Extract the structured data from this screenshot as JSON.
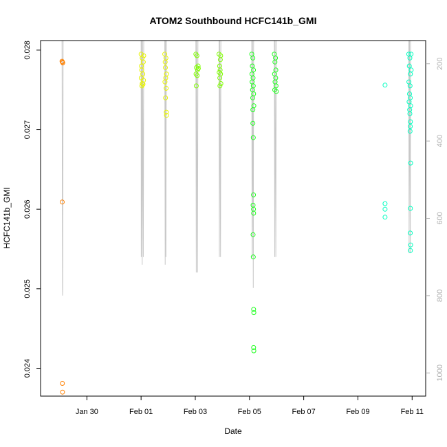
{
  "chart_data": {
    "type": "scatter",
    "title": "ATOM2 Southbound HCFC141b_GMI",
    "xlabel": "Date",
    "ylabel": "HCFC141b_GMI",
    "x_unit": "date",
    "xlim": [
      "2017-01-28T07:00",
      "2017-02-11T12:00"
    ],
    "ylim": [
      0.02365,
      0.02812
    ],
    "y2lim": [
      1060,
      140
    ],
    "x_ticks": [
      {
        "date": "2017-01-30",
        "label": "Jan 30"
      },
      {
        "date": "2017-02-01",
        "label": "Feb 01"
      },
      {
        "date": "2017-02-03",
        "label": "Feb 03"
      },
      {
        "date": "2017-02-05",
        "label": "Feb 05"
      },
      {
        "date": "2017-02-07",
        "label": "Feb 07"
      },
      {
        "date": "2017-02-09",
        "label": "Feb 09"
      },
      {
        "date": "2017-02-11",
        "label": "Feb 11"
      }
    ],
    "y_ticks": [
      {
        "value": 0.024,
        "label": "0.024"
      },
      {
        "value": 0.025,
        "label": "0.025"
      },
      {
        "value": 0.026,
        "label": "0.026"
      },
      {
        "value": 0.027,
        "label": "0.027"
      },
      {
        "value": 0.028,
        "label": "0.028"
      }
    ],
    "y2_ticks": [
      {
        "value": 200,
        "label": "200"
      },
      {
        "value": 400,
        "label": "400"
      },
      {
        "value": 600,
        "label": "600"
      },
      {
        "value": 800,
        "label": "800"
      },
      {
        "value": 1000,
        "label": "1000"
      }
    ],
    "grid": false,
    "point_color_scale": [
      "#ff8000",
      "#ffff00",
      "#00ff00",
      "#00ffcc"
    ],
    "pressure_line_color": "#c8c8c8",
    "series": [
      {
        "color": "#ff8000",
        "points": [
          [
            "2017-01-29T02:00",
            0.02786
          ],
          [
            "2017-01-29T02:20",
            0.02785
          ],
          [
            "2017-01-29T02:40",
            0.02784
          ],
          [
            "2017-01-29T02:10",
            0.02609
          ],
          [
            "2017-01-29T02:20",
            0.02381
          ],
          [
            "2017-01-29T02:25",
            0.0237
          ]
        ]
      },
      {
        "color": "#e8f400",
        "points": [
          [
            "2017-02-01T00:00",
            0.02795
          ],
          [
            "2017-02-01T01:00",
            0.0279
          ],
          [
            "2017-02-01T02:00",
            0.02785
          ],
          [
            "2017-02-01T00:30",
            0.02775
          ],
          [
            "2017-02-01T01:30",
            0.0277
          ],
          [
            "2017-02-01T00:10",
            0.02765
          ],
          [
            "2017-02-01T02:10",
            0.02762
          ],
          [
            "2017-02-01T01:00",
            0.02758
          ],
          [
            "2017-02-01T00:40",
            0.02755
          ],
          [
            "2017-02-01T01:40",
            0.02757
          ],
          [
            "2017-02-01T02:20",
            0.02793
          ],
          [
            "2017-02-01T00:20",
            0.0278
          ],
          [
            "2017-02-01T21:00",
            0.02795
          ],
          [
            "2017-02-01T22:00",
            0.0279
          ],
          [
            "2017-02-01T21:30",
            0.02778
          ],
          [
            "2017-02-01T22:30",
            0.0277
          ],
          [
            "2017-02-01T21:10",
            0.0276
          ],
          [
            "2017-02-01T22:10",
            0.02752
          ],
          [
            "2017-02-01T21:40",
            0.0274
          ],
          [
            "2017-02-01T22:20",
            0.02722
          ],
          [
            "2017-02-01T22:30",
            0.02718
          ],
          [
            "2017-02-01T21:20",
            0.02785
          ],
          [
            "2017-02-01T21:50",
            0.02765
          ]
        ]
      },
      {
        "color": "#80ff00",
        "points": [
          [
            "2017-02-03T00:30",
            0.02795
          ],
          [
            "2017-02-03T01:30",
            0.02793
          ],
          [
            "2017-02-03T02:30",
            0.0278
          ],
          [
            "2017-02-03T01:00",
            0.02778
          ],
          [
            "2017-02-03T02:00",
            0.02775
          ],
          [
            "2017-02-03T00:40",
            0.0277
          ],
          [
            "2017-02-03T01:40",
            0.02768
          ],
          [
            "2017-02-03T00:50",
            0.02755
          ],
          [
            "2017-02-03T02:40",
            0.02777
          ],
          [
            "2017-02-03T21:00",
            0.02795
          ],
          [
            "2017-02-03T22:30",
            0.02793
          ],
          [
            "2017-02-03T21:30",
            0.0278
          ],
          [
            "2017-02-03T22:00",
            0.02775
          ],
          [
            "2017-02-03T21:10",
            0.02772
          ],
          [
            "2017-02-03T22:20",
            0.0277
          ],
          [
            "2017-02-03T21:40",
            0.02765
          ],
          [
            "2017-02-03T22:40",
            0.02758
          ],
          [
            "2017-02-03T21:50",
            0.02755
          ],
          [
            "2017-02-03T22:10",
            0.02788
          ]
        ]
      },
      {
        "color": "#20ff20",
        "points": [
          [
            "2017-02-05T02:00",
            0.02795
          ],
          [
            "2017-02-05T03:00",
            0.0279
          ],
          [
            "2017-02-05T02:30",
            0.0278
          ],
          [
            "2017-02-05T03:30",
            0.02775
          ],
          [
            "2017-02-05T02:10",
            0.0277
          ],
          [
            "2017-02-05T03:10",
            0.02765
          ],
          [
            "2017-02-05T02:20",
            0.0276
          ],
          [
            "2017-02-05T03:20",
            0.02755
          ],
          [
            "2017-02-05T02:40",
            0.0275
          ],
          [
            "2017-02-05T03:40",
            0.02745
          ],
          [
            "2017-02-05T02:50",
            0.0274
          ],
          [
            "2017-02-05T03:50",
            0.0273
          ],
          [
            "2017-02-05T03:00",
            0.02725
          ],
          [
            "2017-02-05T03:00",
            0.02708
          ],
          [
            "2017-02-05T03:20",
            0.0269
          ],
          [
            "2017-02-05T03:30",
            0.02618
          ],
          [
            "2017-02-05T03:10",
            0.02605
          ],
          [
            "2017-02-05T03:30",
            0.026
          ],
          [
            "2017-02-05T03:40",
            0.02595
          ],
          [
            "2017-02-05T03:10",
            0.02568
          ],
          [
            "2017-02-05T03:20",
            0.0254
          ],
          [
            "2017-02-05T03:40",
            0.02474
          ],
          [
            "2017-02-05T03:50",
            0.0247
          ],
          [
            "2017-02-05T03:40",
            0.02426
          ],
          [
            "2017-02-05T03:50",
            0.02422
          ],
          [
            "2017-02-05T22:00",
            0.02795
          ],
          [
            "2017-02-05T23:00",
            0.0279
          ],
          [
            "2017-02-05T22:30",
            0.02785
          ],
          [
            "2017-02-05T23:20",
            0.02775
          ],
          [
            "2017-02-05T22:10",
            0.0277
          ],
          [
            "2017-02-05T23:10",
            0.02765
          ],
          [
            "2017-02-05T22:40",
            0.0276
          ],
          [
            "2017-02-05T23:30",
            0.02755
          ],
          [
            "2017-02-05T22:20",
            0.0275
          ],
          [
            "2017-02-05T23:40",
            0.02748
          ]
        ]
      },
      {
        "color": "#00ffc0",
        "points": [
          [
            "2017-02-10T00:00",
            0.02756
          ],
          [
            "2017-02-10T00:00",
            0.02607
          ],
          [
            "2017-02-10T00:00",
            0.026
          ],
          [
            "2017-02-10T00:00",
            0.0259
          ],
          [
            "2017-02-10T21:00",
            0.02795
          ],
          [
            "2017-02-10T22:00",
            0.0279
          ],
          [
            "2017-02-10T21:30",
            0.0278
          ],
          [
            "2017-02-10T22:30",
            0.0277
          ],
          [
            "2017-02-10T21:10",
            0.0276
          ],
          [
            "2017-02-10T22:10",
            0.02755
          ],
          [
            "2017-02-10T21:40",
            0.02745
          ],
          [
            "2017-02-10T22:20",
            0.0274
          ],
          [
            "2017-02-10T21:20",
            0.02735
          ],
          [
            "2017-02-10T22:40",
            0.0273
          ],
          [
            "2017-02-10T21:50",
            0.02725
          ],
          [
            "2017-02-10T22:00",
            0.0272
          ],
          [
            "2017-02-10T22:30",
            0.0271
          ],
          [
            "2017-02-10T22:20",
            0.02704
          ],
          [
            "2017-02-10T22:10",
            0.02698
          ],
          [
            "2017-02-10T22:40",
            0.02658
          ],
          [
            "2017-02-10T22:30",
            0.02601
          ],
          [
            "2017-02-10T22:20",
            0.0257
          ],
          [
            "2017-02-10T22:40",
            0.02555
          ],
          [
            "2017-02-10T22:30",
            0.02548
          ],
          [
            "2017-02-10T23:10",
            0.02775
          ],
          [
            "2017-02-10T23:00",
            0.02795
          ]
        ]
      }
    ],
    "pressure_trace": [
      [
        "2017-01-29T02:00",
        140
      ],
      [
        "2017-01-29T02:30",
        800
      ],
      [
        "2017-01-29T02:40",
        780
      ],
      [
        "2017-01-29T03:00",
        140
      ],
      [
        "2017-01-30T00:00",
        140
      ],
      [
        "2017-02-01T00:00",
        140
      ],
      [
        "2017-02-01T00:10",
        700
      ],
      [
        "2017-02-01T00:30",
        140
      ],
      [
        "2017-02-01T01:00",
        720
      ],
      [
        "2017-02-01T01:20",
        140
      ],
      [
        "2017-02-01T02:00",
        700
      ],
      [
        "2017-02-01T02:20",
        140
      ],
      [
        "2017-02-01T21:00",
        140
      ],
      [
        "2017-02-01T21:20",
        720
      ],
      [
        "2017-02-01T21:40",
        140
      ],
      [
        "2017-02-01T22:00",
        700
      ],
      [
        "2017-02-01T22:20",
        140
      ],
      [
        "2017-02-03T00:30",
        140
      ],
      [
        "2017-02-03T00:50",
        740
      ],
      [
        "2017-02-03T01:10",
        140
      ],
      [
        "2017-02-03T02:00",
        740
      ],
      [
        "2017-02-03T02:20",
        140
      ],
      [
        "2017-02-03T21:00",
        140
      ],
      [
        "2017-02-03T21:20",
        700
      ],
      [
        "2017-02-03T21:40",
        140
      ],
      [
        "2017-02-03T22:20",
        700
      ],
      [
        "2017-02-03T22:40",
        140
      ],
      [
        "2017-02-05T02:00",
        140
      ],
      [
        "2017-02-05T02:20",
        700
      ],
      [
        "2017-02-05T02:40",
        140
      ],
      [
        "2017-02-05T03:20",
        780
      ],
      [
        "2017-02-05T03:40",
        140
      ],
      [
        "2017-02-05T22:00",
        140
      ],
      [
        "2017-02-05T22:20",
        700
      ],
      [
        "2017-02-05T22:40",
        140
      ],
      [
        "2017-02-05T23:20",
        700
      ],
      [
        "2017-02-05T23:40",
        140
      ],
      [
        "2017-02-10T21:00",
        140
      ],
      [
        "2017-02-10T21:20",
        690
      ],
      [
        "2017-02-10T21:40",
        140
      ],
      [
        "2017-02-10T22:20",
        690
      ],
      [
        "2017-02-10T22:40",
        140
      ]
    ]
  }
}
